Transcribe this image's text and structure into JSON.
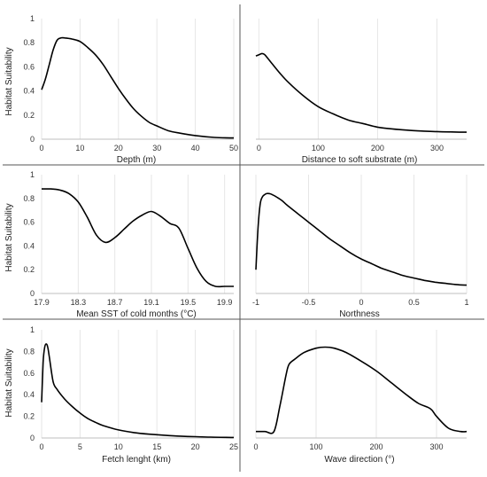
{
  "chart_data": [
    {
      "type": "line",
      "xlabel": "Depth (m)",
      "ylabel": "Habitat Suitability",
      "xlim": [
        0,
        50
      ],
      "ylim": [
        0,
        1
      ],
      "xticks": [
        0,
        10,
        20,
        30,
        40,
        50
      ],
      "yticks": [
        0,
        0.2,
        0.4,
        0.6,
        0.8,
        1
      ],
      "x": [
        0,
        1,
        2,
        3,
        4,
        5,
        6,
        8,
        10,
        12,
        14,
        16,
        18,
        20,
        22,
        24,
        26,
        28,
        30,
        33,
        36,
        40,
        45,
        50
      ],
      "y": [
        0.41,
        0.5,
        0.62,
        0.74,
        0.82,
        0.84,
        0.84,
        0.83,
        0.81,
        0.76,
        0.7,
        0.62,
        0.52,
        0.42,
        0.33,
        0.25,
        0.19,
        0.14,
        0.11,
        0.07,
        0.05,
        0.03,
        0.015,
        0.01
      ]
    },
    {
      "type": "line",
      "xlabel": "Distance to soft substrate (m)",
      "ylabel": "",
      "xlim": [
        -5,
        350
      ],
      "xticks": [
        0,
        100,
        200,
        300
      ],
      "x": [
        -5,
        0,
        5,
        10,
        20,
        35,
        50,
        75,
        100,
        125,
        150,
        175,
        200,
        225,
        250,
        275,
        300,
        325,
        350
      ],
      "y": [
        0.69,
        0.7,
        0.71,
        0.7,
        0.64,
        0.55,
        0.47,
        0.36,
        0.27,
        0.21,
        0.16,
        0.13,
        0.1,
        0.085,
        0.075,
        0.068,
        0.063,
        0.06,
        0.058
      ]
    },
    {
      "type": "line",
      "xlabel": "Mean SST of cold months (°C)",
      "ylabel": "Habitat Suitability",
      "xlim": [
        17.9,
        20.0
      ],
      "ylim": [
        0,
        1
      ],
      "xticks": [
        17.9,
        18.3,
        18.7,
        19.1,
        19.5,
        19.9
      ],
      "yticks": [
        0,
        0.2,
        0.4,
        0.6,
        0.8,
        1
      ],
      "x": [
        17.9,
        18.0,
        18.1,
        18.2,
        18.3,
        18.4,
        18.5,
        18.6,
        18.7,
        18.8,
        18.9,
        19.0,
        19.1,
        19.2,
        19.3,
        19.4,
        19.5,
        19.6,
        19.7,
        19.8,
        19.9,
        20.0
      ],
      "y": [
        0.88,
        0.88,
        0.87,
        0.84,
        0.77,
        0.64,
        0.49,
        0.43,
        0.47,
        0.54,
        0.61,
        0.66,
        0.69,
        0.65,
        0.59,
        0.55,
        0.38,
        0.21,
        0.1,
        0.06,
        0.06,
        0.06
      ]
    },
    {
      "type": "line",
      "xlabel": "Northness",
      "ylabel": "",
      "xlim": [
        -1,
        1
      ],
      "xticks": [
        -1,
        -0.5,
        0,
        0.5,
        1
      ],
      "x": [
        -1,
        -0.98,
        -0.96,
        -0.94,
        -0.92,
        -0.9,
        -0.87,
        -0.84,
        -0.8,
        -0.75,
        -0.7,
        -0.6,
        -0.5,
        -0.4,
        -0.3,
        -0.2,
        -0.1,
        0,
        0.1,
        0.2,
        0.3,
        0.4,
        0.5,
        0.6,
        0.7,
        0.8,
        0.9,
        1
      ],
      "y": [
        0.2,
        0.55,
        0.75,
        0.81,
        0.83,
        0.84,
        0.84,
        0.83,
        0.81,
        0.78,
        0.74,
        0.67,
        0.6,
        0.53,
        0.46,
        0.4,
        0.34,
        0.29,
        0.25,
        0.21,
        0.18,
        0.15,
        0.13,
        0.11,
        0.095,
        0.085,
        0.075,
        0.07
      ]
    },
    {
      "type": "line",
      "xlabel": "Fetch lenght (km)",
      "ylabel": "Habitat Suitability",
      "xlim": [
        0,
        25
      ],
      "ylim": [
        0,
        1
      ],
      "xticks": [
        0,
        5,
        10,
        15,
        20,
        25
      ],
      "yticks": [
        0,
        0.2,
        0.4,
        0.6,
        0.8,
        1
      ],
      "x": [
        0,
        0.2,
        0.4,
        0.6,
        0.8,
        1.0,
        1.5,
        2,
        3,
        4,
        5,
        6,
        7,
        8,
        10,
        12,
        14,
        16,
        18,
        20,
        22,
        25
      ],
      "y": [
        0.33,
        0.7,
        0.84,
        0.87,
        0.84,
        0.75,
        0.52,
        0.45,
        0.36,
        0.29,
        0.23,
        0.18,
        0.145,
        0.115,
        0.075,
        0.05,
        0.035,
        0.025,
        0.017,
        0.012,
        0.008,
        0.005
      ]
    },
    {
      "type": "line",
      "xlabel": "Wave direction (°)",
      "ylabel": "",
      "xlim": [
        0,
        350
      ],
      "xticks": [
        0,
        100,
        200,
        300
      ],
      "x": [
        0,
        15,
        30,
        40,
        50,
        55,
        65,
        80,
        100,
        115,
        130,
        150,
        175,
        200,
        225,
        250,
        270,
        290,
        300,
        320,
        340,
        350
      ],
      "y": [
        0.06,
        0.06,
        0.06,
        0.3,
        0.58,
        0.68,
        0.73,
        0.79,
        0.83,
        0.84,
        0.83,
        0.79,
        0.71,
        0.62,
        0.51,
        0.4,
        0.32,
        0.27,
        0.2,
        0.09,
        0.06,
        0.06
      ]
    }
  ]
}
